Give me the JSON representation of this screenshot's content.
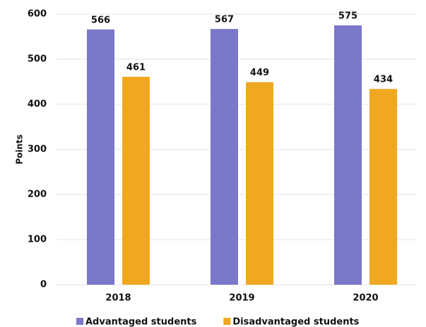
{
  "chart_data": {
    "type": "bar",
    "y_label": "Points",
    "categories": [
      "2018",
      "2019",
      "2020"
    ],
    "series": [
      {
        "name": "Advantaged students",
        "color": "#7b78c9",
        "values": [
          566,
          567,
          575
        ]
      },
      {
        "name": "Disadvantaged students",
        "color": "#f0a820",
        "values": [
          461,
          449,
          434
        ]
      }
    ],
    "ylim": [
      0,
      600
    ],
    "yticks": [
      0,
      100,
      200,
      300,
      400,
      500,
      600
    ],
    "grid": true,
    "legend": "bottom"
  }
}
